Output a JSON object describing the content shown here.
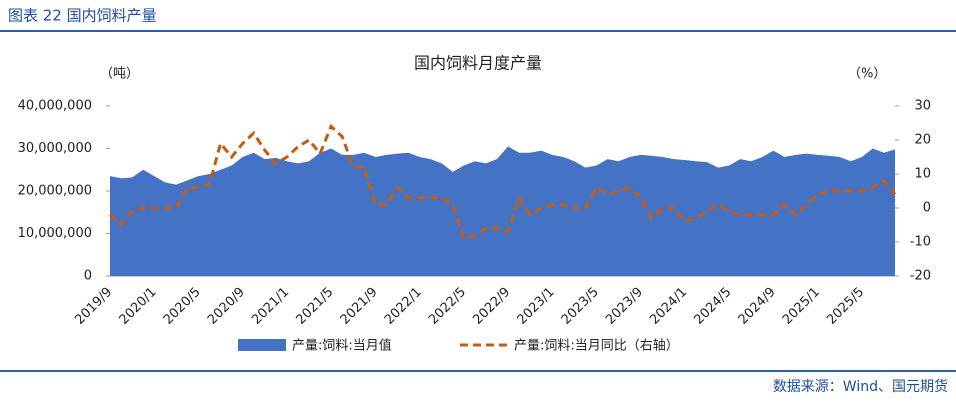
{
  "header": {
    "title": "图表 22 国内饲料产量"
  },
  "source": "数据来源：Wind、国元期货",
  "chart_data": {
    "type": "area-line",
    "title": "国内饲料月度产量",
    "y_label": "（吨）",
    "y2_label": "（%）",
    "categories": [
      "2019/9",
      null,
      null,
      null,
      "2020/1",
      null,
      null,
      null,
      "2020/5",
      null,
      null,
      null,
      "2020/9",
      null,
      null,
      null,
      "2021/1",
      null,
      null,
      null,
      "2021/5",
      null,
      null,
      null,
      "2021/9",
      null,
      null,
      null,
      "2022/1",
      null,
      null,
      null,
      "2022/5",
      null,
      null,
      null,
      "2022/9",
      null,
      null,
      null,
      "2023/1",
      null,
      null,
      null,
      "2023/5",
      null,
      null,
      null,
      "2023/9",
      null,
      null,
      null,
      "2024/1",
      null,
      null,
      null,
      "2024/5",
      null,
      null,
      null,
      "2024/9",
      null,
      null,
      null,
      "2025/1",
      null,
      null,
      null,
      "2025/5",
      null,
      null,
      null
    ],
    "series": [
      {
        "name": "产量:饲料:当月值",
        "color": "#4472c4",
        "axis": "y",
        "values": [
          23500000,
          23000000,
          23200000,
          25000000,
          23500000,
          22000000,
          21500000,
          22500000,
          23500000,
          24000000,
          25000000,
          26000000,
          28000000,
          29000000,
          27500000,
          27800000,
          27000000,
          26500000,
          27000000,
          29000000,
          30000000,
          28500000,
          28500000,
          29000000,
          28000000,
          28500000,
          28800000,
          29000000,
          28000000,
          27500000,
          26500000,
          24500000,
          26000000,
          27000000,
          26500000,
          27500000,
          30500000,
          29000000,
          29000000,
          29500000,
          28500000,
          28000000,
          27000000,
          25500000,
          26000000,
          27500000,
          27000000,
          28000000,
          28500000,
          28300000,
          28000000,
          27500000,
          27300000,
          27000000,
          26800000,
          25500000,
          26000000,
          27500000,
          27000000,
          28000000,
          29500000,
          28000000,
          28500000,
          28800000,
          28500000,
          28300000,
          28000000,
          27000000,
          28000000,
          30000000,
          29000000,
          29800000
        ]
      },
      {
        "name": "产量:饲料:当月同比（右轴）",
        "color": "#c55a11",
        "axis": "y2",
        "values": [
          -2,
          -5,
          -1,
          0,
          0,
          0,
          0,
          6,
          6,
          7,
          19,
          15,
          19,
          22,
          17,
          13,
          15,
          18,
          20,
          16,
          24,
          21,
          12,
          12,
          1,
          1,
          6,
          3,
          3,
          3,
          3,
          1,
          -9,
          -8,
          -6,
          -6,
          -7,
          3,
          -2,
          0,
          1,
          1,
          0,
          0,
          6,
          4,
          5,
          6,
          3,
          -3,
          0,
          0,
          -4,
          -3,
          -1,
          1,
          -1,
          -2,
          -2,
          -2,
          -2,
          1,
          -2,
          1,
          4,
          5,
          5,
          5,
          5,
          6,
          8,
          4
        ]
      }
    ],
    "ylim": [
      0,
      40000000
    ],
    "yticks": [
      0,
      {
        "value": 10000000,
        "label": "10,000,000"
      },
      {
        "value": 20000000,
        "label": "20,000,000"
      },
      {
        "value": 30000000,
        "label": "30,000,000"
      },
      {
        "value": 40000000,
        "label": "40,000,000"
      }
    ],
    "y2lim": [
      -20,
      30
    ],
    "y2ticks": [
      -20,
      -10,
      0,
      10,
      20,
      30
    ]
  }
}
